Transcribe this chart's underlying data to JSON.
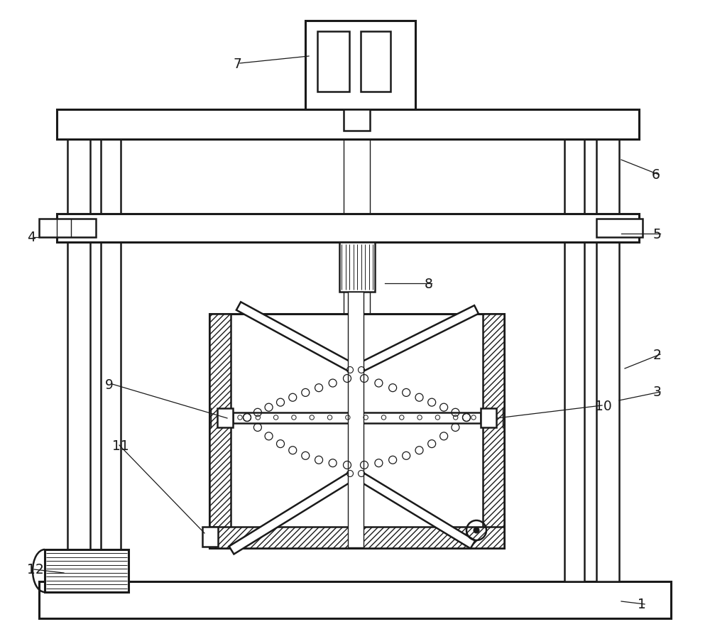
{
  "bg": "#ffffff",
  "lc": "#1a1a1a",
  "figsize": [
    10.0,
    8.87
  ],
  "dpi": 100,
  "lw_thin": 1.0,
  "lw_med": 1.8,
  "lw_thick": 2.2
}
